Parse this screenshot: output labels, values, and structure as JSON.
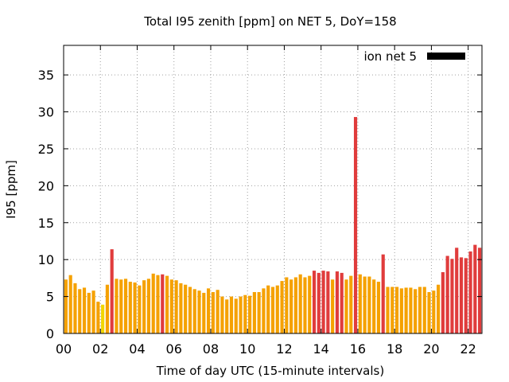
{
  "chart_data": {
    "type": "bar",
    "title": "Total I95 zenith [ppm] on NET 5, DoY=158",
    "xlabel": "Time of day UTC (15-minute intervals)",
    "ylabel": "I95 [ppm]",
    "xlim": [
      0,
      22.75
    ],
    "ylim": [
      0,
      39
    ],
    "xticks": [
      "00",
      "02",
      "04",
      "06",
      "08",
      "10",
      "12",
      "14",
      "16",
      "18",
      "20",
      "22"
    ],
    "xtick_values": [
      0,
      2,
      4,
      6,
      8,
      10,
      12,
      14,
      16,
      18,
      20,
      22
    ],
    "yticks": [
      "0",
      "5",
      "10",
      "15",
      "20",
      "25",
      "30",
      "35"
    ],
    "ytick_values": [
      0,
      5,
      10,
      15,
      20,
      25,
      30,
      35
    ],
    "grid": true,
    "legend": {
      "label": "ion net 5",
      "position": "top-right",
      "color": "#000000"
    },
    "colors": {
      "yellow": "#f2d600",
      "orange": "#f5a100",
      "red": "#e03c3c"
    },
    "interval_hours": 0.25,
    "values": [
      7.3,
      7.9,
      6.8,
      6.0,
      6.2,
      5.5,
      5.8,
      4.3,
      3.9,
      6.6,
      11.4,
      7.4,
      7.3,
      7.4,
      7.0,
      6.9,
      6.5,
      7.2,
      7.4,
      8.1,
      7.9,
      8.0,
      7.8,
      7.3,
      7.2,
      6.8,
      6.6,
      6.3,
      6.0,
      5.8,
      5.5,
      6.1,
      5.6,
      5.9,
      5.0,
      4.6,
      5.0,
      4.7,
      5.0,
      5.2,
      5.1,
      5.6,
      5.6,
      6.1,
      6.5,
      6.3,
      6.5,
      7.1,
      7.6,
      7.3,
      7.6,
      8.0,
      7.6,
      7.8,
      8.5,
      8.2,
      8.5,
      8.4,
      7.3,
      8.4,
      8.2,
      7.3,
      7.8,
      29.3,
      8.0,
      7.7,
      7.7,
      7.3,
      7.0,
      10.7,
      6.3,
      6.3,
      6.3,
      6.1,
      6.2,
      6.2,
      6.0,
      6.3,
      6.3,
      5.6,
      5.8,
      6.6,
      8.3,
      10.5,
      10.1,
      11.6,
      10.3,
      10.2,
      11.1,
      12.0,
      11.6
    ],
    "bar_colors": [
      "orange",
      "orange",
      "orange",
      "orange",
      "orange",
      "orange",
      "orange",
      "orange",
      "yellow",
      "orange",
      "red",
      "orange",
      "orange",
      "orange",
      "orange",
      "orange",
      "orange",
      "orange",
      "orange",
      "orange",
      "orange",
      "red",
      "orange",
      "orange",
      "orange",
      "orange",
      "orange",
      "orange",
      "orange",
      "orange",
      "orange",
      "orange",
      "orange",
      "orange",
      "orange",
      "orange",
      "orange",
      "orange",
      "orange",
      "orange",
      "orange",
      "orange",
      "orange",
      "orange",
      "orange",
      "orange",
      "orange",
      "orange",
      "orange",
      "orange",
      "orange",
      "orange",
      "orange",
      "orange",
      "red",
      "red",
      "red",
      "red",
      "orange",
      "red",
      "red",
      "orange",
      "orange",
      "red",
      "orange",
      "orange",
      "orange",
      "orange",
      "orange",
      "red",
      "orange",
      "orange",
      "orange",
      "orange",
      "orange",
      "orange",
      "orange",
      "orange",
      "orange",
      "orange",
      "orange",
      "orange",
      "red",
      "red",
      "red",
      "red",
      "red",
      "red",
      "red",
      "red",
      "red"
    ]
  }
}
